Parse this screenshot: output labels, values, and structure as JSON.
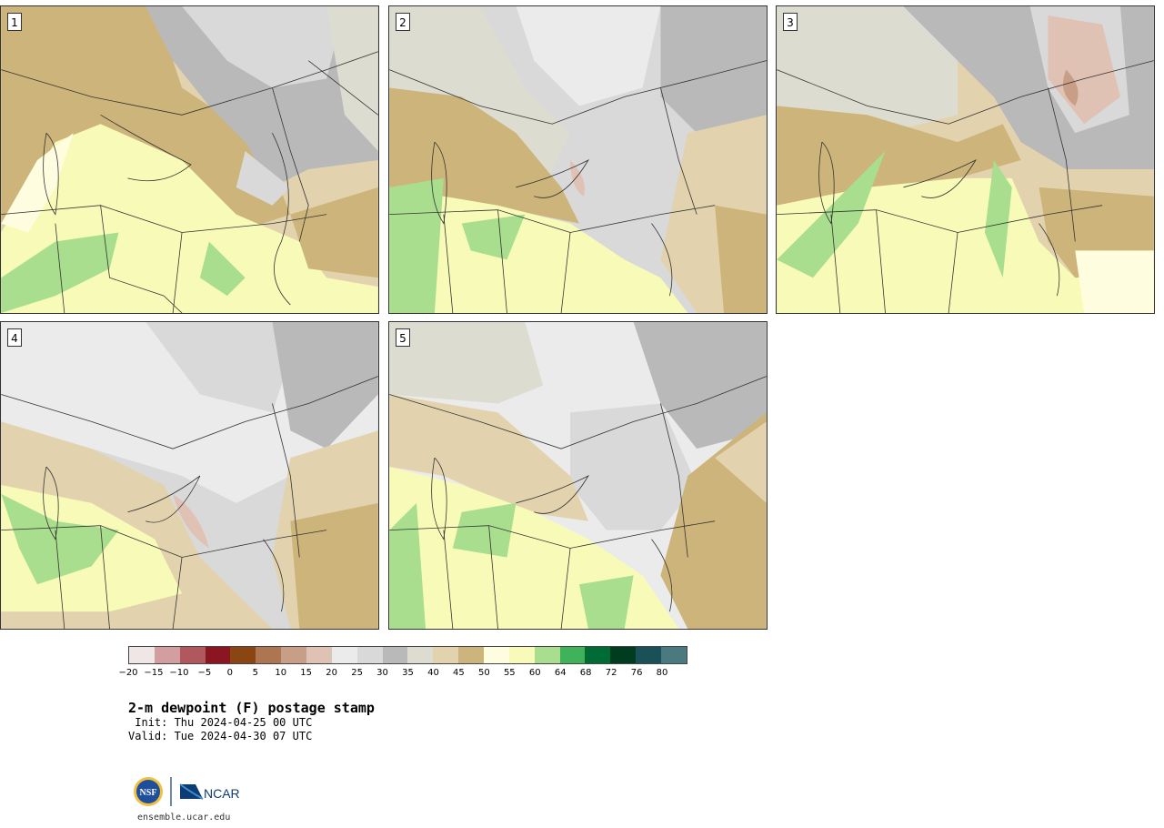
{
  "panels": [
    {
      "label": "1"
    },
    {
      "label": "2"
    },
    {
      "label": "3"
    },
    {
      "label": "4"
    },
    {
      "label": "5"
    }
  ],
  "colorbar": {
    "colors": [
      "#f0e6e6",
      "#d29ea0",
      "#b0585d",
      "#8b1520",
      "#8b4513",
      "#ad7650",
      "#c89f86",
      "#e0c2b4",
      "#ebebeb",
      "#d9d9d9",
      "#b9b9b9",
      "#dcdcd0",
      "#e2d3ae",
      "#cdb47a",
      "#fffde0",
      "#f8fbb8",
      "#a8de8d",
      "#40b25a",
      "#006b35",
      "#003d20",
      "#1a5058",
      "#4a7a80"
    ],
    "tick_labels": [
      "−20",
      "−15",
      "−10",
      "−5",
      "0",
      "5",
      "10",
      "15",
      "20",
      "25",
      "30",
      "35",
      "40",
      "45",
      "50",
      "55",
      "60",
      "64",
      "68",
      "72",
      "76",
      "80"
    ]
  },
  "title": "2-m dewpoint (F) postage stamp",
  "init": " Init: Thu 2024-04-25 00 UTC",
  "valid": "Valid: Tue 2024-04-30 07 UTC",
  "logo": {
    "nsf": "NSF",
    "ncar": "NCAR"
  },
  "site": "ensemble.ucar.edu"
}
